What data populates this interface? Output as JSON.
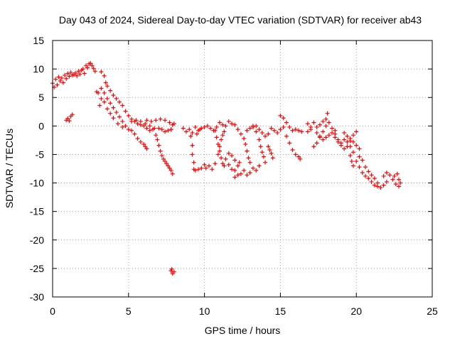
{
  "chart_data": {
    "type": "scatter",
    "title": "Day 043 of 2024, Sidereal Day-to-day VTEC variation (SDTVAR) for receiver ab43",
    "xlabel": "GPS time / hours",
    "ylabel": "SDTVAR / TECUs",
    "xlim": [
      0,
      25
    ],
    "ylim": [
      -30,
      15
    ],
    "xticks": [
      0,
      5,
      10,
      15,
      20,
      25
    ],
    "yticks": [
      -30,
      -25,
      -20,
      -15,
      -10,
      -5,
      0,
      5,
      10,
      15
    ],
    "grid": true,
    "marker": "+",
    "marker_color": "#ff0000",
    "series": [
      {
        "name": "SDTVAR",
        "points": [
          [
            0.0,
            7.5
          ],
          [
            0.1,
            6.8
          ],
          [
            0.2,
            8.2
          ],
          [
            0.3,
            7.2
          ],
          [
            0.4,
            8.6
          ],
          [
            0.5,
            7.9
          ],
          [
            0.6,
            8.4
          ],
          [
            0.7,
            7.6
          ],
          [
            0.8,
            8.9
          ],
          [
            0.9,
            8.3
          ],
          [
            1.0,
            9.2
          ],
          [
            1.1,
            8.7
          ],
          [
            1.2,
            9.4
          ],
          [
            1.3,
            8.9
          ],
          [
            1.4,
            9.0
          ],
          [
            1.5,
            9.3
          ],
          [
            1.6,
            8.8
          ],
          [
            1.7,
            9.6
          ],
          [
            1.8,
            9.1
          ],
          [
            1.9,
            9.8
          ],
          [
            2.0,
            10.0
          ],
          [
            2.1,
            9.2
          ],
          [
            2.2,
            10.6
          ],
          [
            2.3,
            10.2
          ],
          [
            2.4,
            10.9
          ],
          [
            2.5,
            11.0
          ],
          [
            2.6,
            10.6
          ],
          [
            2.7,
            10.1
          ],
          [
            2.8,
            9.6
          ],
          [
            0.9,
            1.0
          ],
          [
            1.0,
            1.3
          ],
          [
            1.1,
            0.9
          ],
          [
            1.2,
            1.7
          ],
          [
            1.3,
            2.0
          ],
          [
            2.9,
            6.0
          ],
          [
            3.1,
            3.6
          ],
          [
            3.2,
            9.5
          ],
          [
            3.4,
            8.8
          ],
          [
            3.5,
            7.6
          ],
          [
            3.6,
            7.0
          ],
          [
            3.8,
            6.2
          ],
          [
            4.0,
            5.4
          ],
          [
            4.2,
            4.8
          ],
          [
            4.4,
            4.2
          ],
          [
            4.6,
            3.6
          ],
          [
            4.8,
            2.6
          ],
          [
            5.0,
            1.8
          ],
          [
            5.2,
            1.2
          ],
          [
            5.4,
            0.8
          ],
          [
            5.6,
            0.4
          ],
          [
            5.8,
            0.2
          ],
          [
            6.0,
            0.0
          ],
          [
            6.2,
            -0.4
          ],
          [
            6.4,
            -0.8
          ],
          [
            3.2,
            6.6
          ],
          [
            3.4,
            5.8
          ],
          [
            3.6,
            4.8
          ],
          [
            3.8,
            4.0
          ],
          [
            4.0,
            3.2
          ],
          [
            4.2,
            2.4
          ],
          [
            4.4,
            1.6
          ],
          [
            4.6,
            0.8
          ],
          [
            4.8,
            0.0
          ],
          [
            5.0,
            -0.6
          ],
          [
            3.0,
            5.8
          ],
          [
            3.2,
            4.8
          ],
          [
            3.4,
            4.2
          ],
          [
            3.6,
            3.0
          ],
          [
            3.8,
            2.2
          ],
          [
            4.0,
            1.4
          ],
          [
            4.3,
            0.4
          ],
          [
            4.6,
            -0.2
          ],
          [
            5.2,
            -0.8
          ],
          [
            5.4,
            -1.4
          ],
          [
            5.6,
            -2.2
          ],
          [
            5.8,
            -2.8
          ],
          [
            6.0,
            -3.2
          ],
          [
            6.1,
            -3.6
          ],
          [
            6.2,
            -4.0
          ],
          [
            5.2,
            0.8
          ],
          [
            5.5,
            1.0
          ],
          [
            5.8,
            0.8
          ],
          [
            6.1,
            0.4
          ],
          [
            6.4,
            0.0
          ],
          [
            6.7,
            -0.4
          ],
          [
            7.0,
            -0.4
          ],
          [
            7.2,
            -0.6
          ],
          [
            7.4,
            -1.0
          ],
          [
            7.6,
            -0.8
          ],
          [
            7.8,
            -0.6
          ],
          [
            6.2,
            1.0
          ],
          [
            6.5,
            0.8
          ],
          [
            6.8,
            1.0
          ],
          [
            7.1,
            1.2
          ],
          [
            7.4,
            1.0
          ],
          [
            7.7,
            0.6
          ],
          [
            8.0,
            0.4
          ],
          [
            7.8,
            -0.6
          ],
          [
            7.9,
            0.2
          ],
          [
            6.6,
            -0.6
          ],
          [
            6.8,
            -1.6
          ],
          [
            6.9,
            -2.4
          ],
          [
            7.0,
            -3.4
          ],
          [
            7.1,
            -4.4
          ],
          [
            7.2,
            -5.2
          ],
          [
            7.3,
            -5.8
          ],
          [
            7.4,
            -6.2
          ],
          [
            7.5,
            -6.6
          ],
          [
            7.6,
            -7.0
          ],
          [
            7.7,
            -7.4
          ],
          [
            7.8,
            -7.8
          ],
          [
            7.9,
            -8.4
          ],
          [
            8.6,
            -0.4
          ],
          [
            8.8,
            -1.0
          ],
          [
            9.0,
            -0.6
          ],
          [
            9.2,
            -1.2
          ],
          [
            9.4,
            -0.2
          ],
          [
            9.5,
            -1.4
          ],
          [
            9.7,
            -0.6
          ],
          [
            9.1,
            -1.8
          ],
          [
            9.2,
            -3.4
          ],
          [
            9.2,
            -5.0
          ],
          [
            9.3,
            -6.4
          ],
          [
            9.3,
            -7.6
          ],
          [
            9.4,
            -7.8
          ],
          [
            9.6,
            -7.6
          ],
          [
            9.8,
            -7.4
          ],
          [
            9.6,
            -0.8
          ],
          [
            9.8,
            -0.4
          ],
          [
            10.0,
            -0.2
          ],
          [
            10.2,
            0.0
          ],
          [
            10.4,
            -0.4
          ],
          [
            10.6,
            -0.8
          ],
          [
            10.8,
            -0.2
          ],
          [
            11.0,
            0.6
          ],
          [
            11.2,
            0.2
          ],
          [
            11.4,
            0.0
          ],
          [
            11.6,
            0.8
          ],
          [
            11.8,
            0.4
          ],
          [
            10.0,
            -6.8
          ],
          [
            10.1,
            -7.4
          ],
          [
            10.3,
            -7.0
          ],
          [
            10.5,
            -7.6
          ],
          [
            10.7,
            -6.6
          ],
          [
            10.9,
            -5.0
          ],
          [
            11.0,
            -3.6
          ],
          [
            11.1,
            -2.4
          ],
          [
            11.2,
            -1.6
          ],
          [
            11.3,
            -1.0
          ],
          [
            10.7,
            -0.8
          ],
          [
            10.8,
            -2.0
          ],
          [
            10.9,
            -3.2
          ],
          [
            11.0,
            -4.4
          ],
          [
            11.1,
            -5.6
          ],
          [
            11.2,
            -6.6
          ],
          [
            11.3,
            -7.0
          ],
          [
            11.6,
            -6.8
          ],
          [
            11.8,
            -7.6
          ],
          [
            12.0,
            -7.8
          ],
          [
            12.2,
            -7.0
          ],
          [
            12.4,
            -8.4
          ],
          [
            12.6,
            -7.8
          ],
          [
            12.8,
            -8.6
          ],
          [
            13.0,
            -8.2
          ],
          [
            13.2,
            -7.4
          ],
          [
            13.4,
            -7.8
          ],
          [
            13.6,
            -7.0
          ],
          [
            12.0,
            -9.0
          ],
          [
            12.2,
            -8.6
          ],
          [
            11.4,
            -5.8
          ],
          [
            11.6,
            -4.8
          ],
          [
            11.8,
            -5.2
          ],
          [
            12.0,
            -6.0
          ],
          [
            12.3,
            -6.4
          ],
          [
            12.0,
            0.2
          ],
          [
            12.2,
            -0.6
          ],
          [
            12.4,
            -1.4
          ],
          [
            12.6,
            -2.2
          ],
          [
            12.7,
            -3.2
          ],
          [
            12.8,
            -4.4
          ],
          [
            12.9,
            -5.6
          ],
          [
            13.0,
            -6.4
          ],
          [
            12.8,
            -0.8
          ],
          [
            13.0,
            -0.4
          ],
          [
            13.2,
            -0.2
          ],
          [
            13.4,
            0.0
          ],
          [
            13.6,
            -0.6
          ],
          [
            13.8,
            -1.2
          ],
          [
            14.0,
            -1.8
          ],
          [
            14.2,
            -1.4
          ],
          [
            14.4,
            -0.4
          ],
          [
            14.6,
            -0.8
          ],
          [
            14.8,
            -1.2
          ],
          [
            15.0,
            -0.6
          ],
          [
            15.2,
            -0.2
          ],
          [
            13.2,
            0.0
          ],
          [
            13.4,
            -1.0
          ],
          [
            13.6,
            -2.4
          ],
          [
            13.7,
            -3.6
          ],
          [
            13.8,
            -4.6
          ],
          [
            13.9,
            -5.4
          ],
          [
            14.0,
            -6.4
          ],
          [
            14.2,
            -3.6
          ],
          [
            14.3,
            -4.2
          ],
          [
            14.4,
            -4.8
          ],
          [
            14.5,
            -5.6
          ],
          [
            15.4,
            -1.8
          ],
          [
            15.6,
            -3.0
          ],
          [
            15.8,
            -4.2
          ],
          [
            16.0,
            -5.0
          ],
          [
            16.2,
            -5.4
          ],
          [
            16.3,
            -5.8
          ],
          [
            15.0,
            1.8
          ],
          [
            15.2,
            1.4
          ],
          [
            15.4,
            0.6
          ],
          [
            15.6,
            -0.2
          ],
          [
            15.8,
            -0.8
          ],
          [
            16.0,
            -0.6
          ],
          [
            16.2,
            -0.8
          ],
          [
            16.4,
            -1.0
          ],
          [
            16.8,
            0.4
          ],
          [
            17.0,
            -0.2
          ],
          [
            17.2,
            0.6
          ],
          [
            17.4,
            -0.2
          ],
          [
            17.6,
            0.2
          ],
          [
            17.8,
            0.8
          ],
          [
            18.0,
            1.2
          ],
          [
            18.1,
            2.2
          ],
          [
            16.8,
            -1.0
          ],
          [
            17.0,
            -0.6
          ],
          [
            17.4,
            -1.2
          ],
          [
            17.6,
            -1.8
          ],
          [
            17.8,
            -2.4
          ],
          [
            18.0,
            -2.0
          ],
          [
            18.2,
            -1.6
          ],
          [
            18.4,
            -1.2
          ],
          [
            18.6,
            -0.8
          ],
          [
            17.2,
            -3.6
          ],
          [
            17.4,
            -3.0
          ],
          [
            17.6,
            -2.0
          ],
          [
            17.8,
            -1.0
          ],
          [
            18.0,
            0.0
          ],
          [
            18.2,
            0.6
          ],
          [
            18.4,
            -0.4
          ],
          [
            18.6,
            -1.4
          ],
          [
            18.8,
            -2.4
          ],
          [
            19.0,
            -3.4
          ],
          [
            19.2,
            -4.0
          ],
          [
            19.4,
            -3.6
          ],
          [
            19.6,
            -2.6
          ],
          [
            19.8,
            -1.6
          ],
          [
            20.0,
            -1.0
          ],
          [
            19.2,
            -1.2
          ],
          [
            19.4,
            -1.8
          ],
          [
            19.6,
            -2.2
          ],
          [
            19.8,
            -2.8
          ],
          [
            20.0,
            -3.4
          ],
          [
            20.2,
            -4.0
          ],
          [
            18.6,
            -2.0
          ],
          [
            18.8,
            -2.8
          ],
          [
            19.0,
            -3.0
          ],
          [
            19.2,
            -2.4
          ],
          [
            19.4,
            -2.8
          ],
          [
            19.6,
            -3.6
          ],
          [
            19.8,
            -4.6
          ],
          [
            19.6,
            -5.2
          ],
          [
            19.7,
            -6.2
          ],
          [
            19.8,
            -7.0
          ],
          [
            20.0,
            -6.2
          ],
          [
            20.2,
            -5.4
          ],
          [
            20.4,
            -6.0
          ],
          [
            20.6,
            -7.2
          ],
          [
            20.8,
            -8.0
          ],
          [
            21.0,
            -8.6
          ],
          [
            21.2,
            -9.2
          ],
          [
            21.4,
            -10.0
          ],
          [
            21.6,
            -10.8
          ],
          [
            21.8,
            -10.4
          ],
          [
            22.0,
            -9.8
          ],
          [
            20.2,
            -7.2
          ],
          [
            20.4,
            -8.2
          ],
          [
            20.6,
            -8.8
          ],
          [
            20.8,
            -9.2
          ],
          [
            21.0,
            -9.8
          ],
          [
            21.2,
            -10.4
          ],
          [
            21.4,
            -10.6
          ],
          [
            21.8,
            -8.8
          ],
          [
            22.0,
            -8.2
          ],
          [
            22.2,
            -8.6
          ],
          [
            22.4,
            -9.4
          ],
          [
            22.6,
            -10.2
          ],
          [
            22.8,
            -10.6
          ],
          [
            22.5,
            -8.8
          ],
          [
            22.7,
            -8.4
          ],
          [
            22.8,
            -9.4
          ],
          [
            22.9,
            -10.0
          ],
          [
            7.8,
            -25.4
          ],
          [
            7.9,
            -25.9
          ],
          [
            8.0,
            -25.6
          ],
          [
            7.85,
            -25.1
          ]
        ]
      }
    ]
  }
}
